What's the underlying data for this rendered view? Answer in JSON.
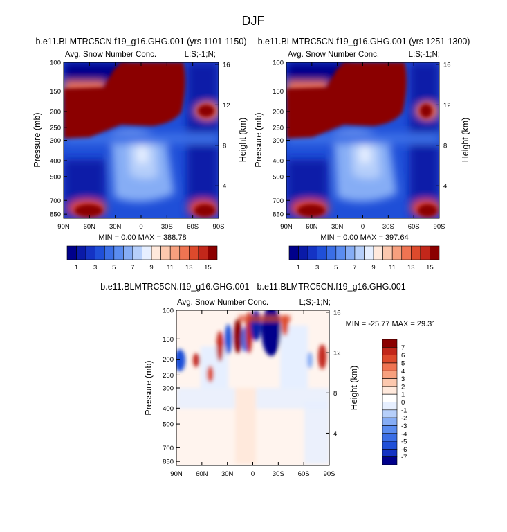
{
  "figure_title": "DJF",
  "chart_data": [
    {
      "type": "heatmap",
      "title": "b.e11.BLMTRC5CN.f19_g16.GHG.001 (yrs 1101-1150)",
      "subtitle_left": "Avg. Snow Number Conc.",
      "subtitle_right": "L;S;-1;N;",
      "xlabel": "",
      "ylabel": "Pressure (mb)",
      "ylabel_right": "Height (km)",
      "x_ticks": [
        "90N",
        "60N",
        "30N",
        "0",
        "30S",
        "60S",
        "90S"
      ],
      "y_ticks": [
        "100",
        "150",
        "200",
        "250",
        "300",
        "400",
        "500",
        "700",
        "850"
      ],
      "y_right_ticks": [
        "16",
        "12",
        "8",
        "4"
      ],
      "stats": "MIN =   0.00   MAX = 388.78",
      "colorbar_labels": [
        "1",
        "3",
        "5",
        "7",
        "9",
        "11",
        "13",
        "15"
      ],
      "colorbar_levels": 16
    },
    {
      "type": "heatmap",
      "title": "b.e11.BLMTRC5CN.f19_g16.GHG.001 (yrs 1251-1300)",
      "subtitle_left": "Avg. Snow Number Conc.",
      "subtitle_right": "L;S;-1;N;",
      "xlabel": "",
      "ylabel": "Pressure (mb)",
      "ylabel_right": "Height (km)",
      "x_ticks": [
        "90N",
        "60N",
        "30N",
        "0",
        "30S",
        "60S",
        "90S"
      ],
      "y_ticks": [
        "100",
        "150",
        "200",
        "250",
        "300",
        "400",
        "500",
        "700",
        "850"
      ],
      "y_right_ticks": [
        "16",
        "12",
        "8",
        "4"
      ],
      "stats": "MIN =   0.00   MAX = 397.64",
      "colorbar_labels": [
        "1",
        "3",
        "5",
        "7",
        "9",
        "11",
        "13",
        "15"
      ],
      "colorbar_levels": 16
    },
    {
      "type": "heatmap",
      "title": "b.e11.BLMTRC5CN.f19_g16.GHG.001 - b.e11.BLMTRC5CN.f19_g16.GHG.001",
      "subtitle_left": "Avg. Snow Number Conc.",
      "subtitle_right": "L;S;-1;N;",
      "xlabel": "",
      "ylabel": "Pressure (mb)",
      "ylabel_right": "Height (km)",
      "x_ticks": [
        "90N",
        "60N",
        "30N",
        "0",
        "30S",
        "60S",
        "90S"
      ],
      "y_ticks": [
        "100",
        "150",
        "200",
        "250",
        "300",
        "400",
        "500",
        "700",
        "850"
      ],
      "y_right_ticks": [
        "16",
        "12",
        "8",
        "4"
      ],
      "stats": "MIN = -25.77  MAX = 29.31",
      "colorbar_labels": [
        "7",
        "6",
        "5",
        "4",
        "3",
        "2",
        "1",
        "0",
        "-1",
        "-2",
        "-3",
        "-4",
        "-5",
        "-6",
        "-7"
      ],
      "colorbar_levels": 16
    }
  ],
  "palettes": {
    "blue_to_red": [
      "#00008b",
      "#0a1aa8",
      "#1433c4",
      "#1f4fd8",
      "#3a6ee6",
      "#5a8cf0",
      "#86adf5",
      "#b6cffa",
      "#e6efff",
      "#ffe9dc",
      "#fcc8ae",
      "#f7a07e",
      "#ef7452",
      "#dd4a2c",
      "#c2271a",
      "#8b0000"
    ],
    "diff_red_to_blue": [
      "#8b0000",
      "#c2271a",
      "#dd4a2c",
      "#ef7452",
      "#f7a07e",
      "#fcc8ae",
      "#ffe9dc",
      "#ffffff",
      "#e6efff",
      "#b6cffa",
      "#86adf5",
      "#5a8cf0",
      "#3a6ee6",
      "#1f4fd8",
      "#1433c4",
      "#00008b"
    ]
  }
}
